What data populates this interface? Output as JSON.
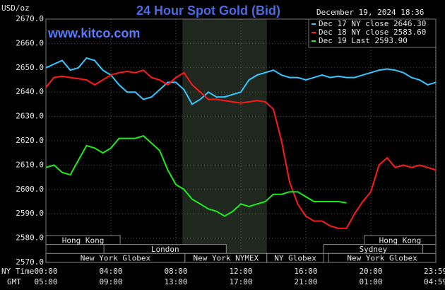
{
  "chart_data": {
    "type": "line",
    "title": "24 Hour Spot Gold (Bid)",
    "unit_label": "USD/oz",
    "timestamp": "December 19, 2024 18:36",
    "brand": "www.kitco.com",
    "x_row_label": "NY Time",
    "x2_row_label": "GMT",
    "x": [
      0,
      0.5,
      1,
      1.5,
      2,
      2.5,
      3,
      3.5,
      4,
      4.5,
      5,
      5.5,
      6,
      6.5,
      7,
      7.5,
      8,
      8.5,
      9,
      9.5,
      10,
      10.5,
      11,
      11.5,
      12,
      12.5,
      13,
      13.5,
      14,
      14.5,
      15,
      15.5,
      16,
      16.5,
      17,
      17.5,
      18,
      18.5,
      19,
      19.5,
      20,
      20.5,
      21,
      21.5,
      22,
      22.5,
      23,
      23.5,
      24
    ],
    "series": [
      {
        "name": "Dec 17 NY close 2646.30",
        "color": "#33c8ff",
        "values": [
          2650,
          2651.5,
          2653,
          2649,
          2650,
          2654,
          2653,
          2649,
          2647,
          2643,
          2640,
          2640,
          2637,
          2638,
          2641,
          2644,
          2644,
          2641,
          2635,
          2637,
          2640,
          2638,
          2638,
          2639,
          2640,
          2645,
          2647,
          2648,
          2649,
          2647,
          2646,
          2646,
          2645,
          2646,
          2647,
          2646,
          2646.5,
          2646,
          2646,
          2647,
          2648,
          2649,
          2649.5,
          2649,
          2648,
          2646,
          2645,
          2643,
          2644
        ]
      },
      {
        "name": "Dec 18 NY close 2583.60",
        "color": "#ff1a1a",
        "values": [
          2642,
          2646,
          2646.5,
          2646,
          2645.5,
          2645,
          2643,
          2645,
          2647,
          2648,
          2648.5,
          2648,
          2649,
          2646,
          2645,
          2643,
          2646,
          2648,
          2643,
          2640,
          2637,
          2637,
          2636.5,
          2636,
          2635.5,
          2636,
          2636.5,
          2636,
          2633,
          2620,
          2603,
          2594,
          2589,
          2587,
          2587,
          2585,
          2584,
          2584,
          2590,
          2595,
          2599,
          2610,
          2613,
          2609,
          2610,
          2609,
          2610,
          2609,
          2608
        ]
      },
      {
        "name": "Dec 19 Last 2593.90",
        "color": "#1aee1a",
        "values": [
          2609,
          2610,
          2607,
          2606,
          2612,
          2618,
          2617,
          2615,
          2617,
          2621,
          2621,
          2621,
          2622,
          2619,
          2616,
          2608,
          2602,
          2600,
          2596,
          2594,
          2592,
          2591,
          2589,
          2591,
          2594,
          2593,
          2594,
          2595,
          2598,
          2598,
          2599,
          2599,
          2597,
          2595,
          2595,
          2595,
          2595,
          2594.5,
          null,
          null,
          null,
          null,
          null,
          null,
          null,
          null,
          null,
          null,
          null
        ]
      }
    ],
    "xlim": [
      0,
      24
    ],
    "xticks": [
      {
        "value": 0,
        "label": "00:00"
      },
      {
        "value": 4,
        "label": "04:00"
      },
      {
        "value": 8,
        "label": "08:00"
      },
      {
        "value": 12,
        "label": "12:00"
      },
      {
        "value": 16,
        "label": "16:00"
      },
      {
        "value": 20,
        "label": "20:00"
      },
      {
        "value": 23.98,
        "label": "23:59"
      }
    ],
    "x2tick_labels": [
      "05:00",
      "09:00",
      "13:00",
      "17:00",
      "21:00",
      "01:00",
      "04:59"
    ],
    "ylim": [
      2570,
      2670
    ],
    "yticks": [
      {
        "value": 2570,
        "label": "2570.0"
      },
      {
        "value": 2580,
        "label": "2580.0"
      },
      {
        "value": 2590,
        "label": "2590.0"
      },
      {
        "value": 2600,
        "label": "2600.0"
      },
      {
        "value": 2610,
        "label": "2610.0"
      },
      {
        "value": 2620,
        "label": "2620.0"
      },
      {
        "value": 2630,
        "label": "2630.0"
      },
      {
        "value": 2640,
        "label": "2640.0"
      },
      {
        "value": 2650,
        "label": "2650.0"
      },
      {
        "value": 2660,
        "label": "2660.0"
      },
      {
        "value": 2670,
        "label": "2670.0"
      }
    ],
    "grid": true,
    "shaded_region": [
      8.4,
      13.6
    ],
    "sessions": [
      {
        "label": "Hong Kong",
        "row": 0,
        "start": 0,
        "end": 4.57
      },
      {
        "label": "Hong Kong",
        "row": 0,
        "start": 19.6,
        "end": 24
      },
      {
        "label": "London",
        "row": 1,
        "start": 3.57,
        "end": 11.1
      },
      {
        "label": "Sydney",
        "row": 1,
        "start": 17.1,
        "end": 23.2
      },
      {
        "label": "New York Globex",
        "row": 2,
        "start": 0,
        "end": 8.56
      },
      {
        "label": "New York NYMEX",
        "row": 2,
        "start": 8.56,
        "end": 13.6
      },
      {
        "label": "NY Globex",
        "row": 2,
        "start": 13.6,
        "end": 17.1
      },
      {
        "label": "New York Globex",
        "row": 2,
        "start": 17.4,
        "end": 24
      }
    ]
  }
}
